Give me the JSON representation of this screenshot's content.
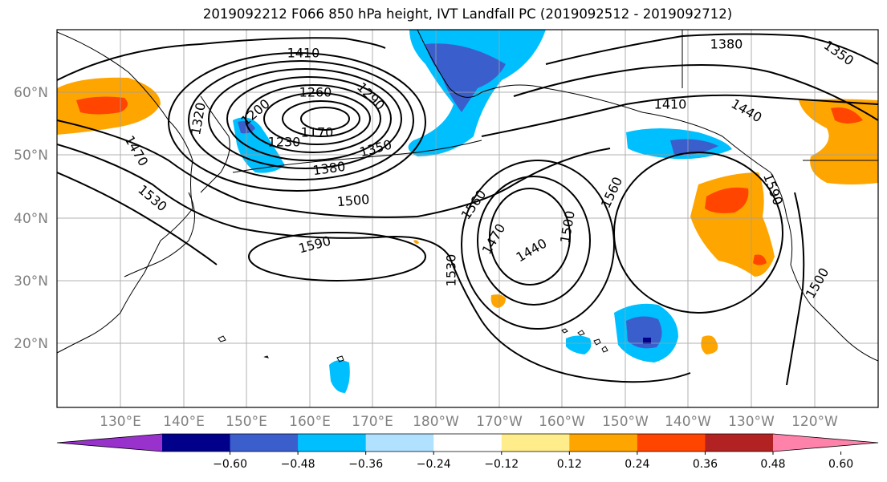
{
  "title": "2019092212 F066 850 hPa height, IVT Landfall PC (2019092512 - 2019092712)",
  "latitude_labels": [
    "60°N",
    "50°N",
    "40°N",
    "30°N",
    "20°N"
  ],
  "longitude_labels": [
    "130°E",
    "140°E",
    "150°E",
    "160°E",
    "170°E",
    "180°W",
    "170°W",
    "160°W",
    "150°W",
    "140°W",
    "130°W",
    "120°W"
  ],
  "contour_labels": [
    "1410",
    "1380",
    "1350",
    "1260",
    "1290",
    "1320",
    "1200",
    "1170",
    "1230",
    "1350",
    "1380",
    "1410",
    "1440",
    "1470",
    "1530",
    "1500",
    "1560",
    "1560",
    "1470",
    "1440",
    "1500",
    "1590",
    "1590",
    "1530",
    "1500"
  ],
  "colorbar": {
    "colors": [
      "#9932cc",
      "#00008b",
      "#3a5fcd",
      "#00bfff",
      "#b0e2ff",
      "#ffffff",
      "#ffec8b",
      "#ffa500",
      "#ff4500",
      "#b22222",
      "#ff82ab"
    ],
    "tick_labels": [
      "−0.60",
      "−0.48",
      "−0.36",
      "−0.24",
      "−0.12",
      "0.12",
      "0.24",
      "0.36",
      "0.48",
      "0.60"
    ]
  },
  "colors": {
    "contour": "#000000",
    "grid": "#a0a0a0",
    "axis_label": "#808080"
  }
}
